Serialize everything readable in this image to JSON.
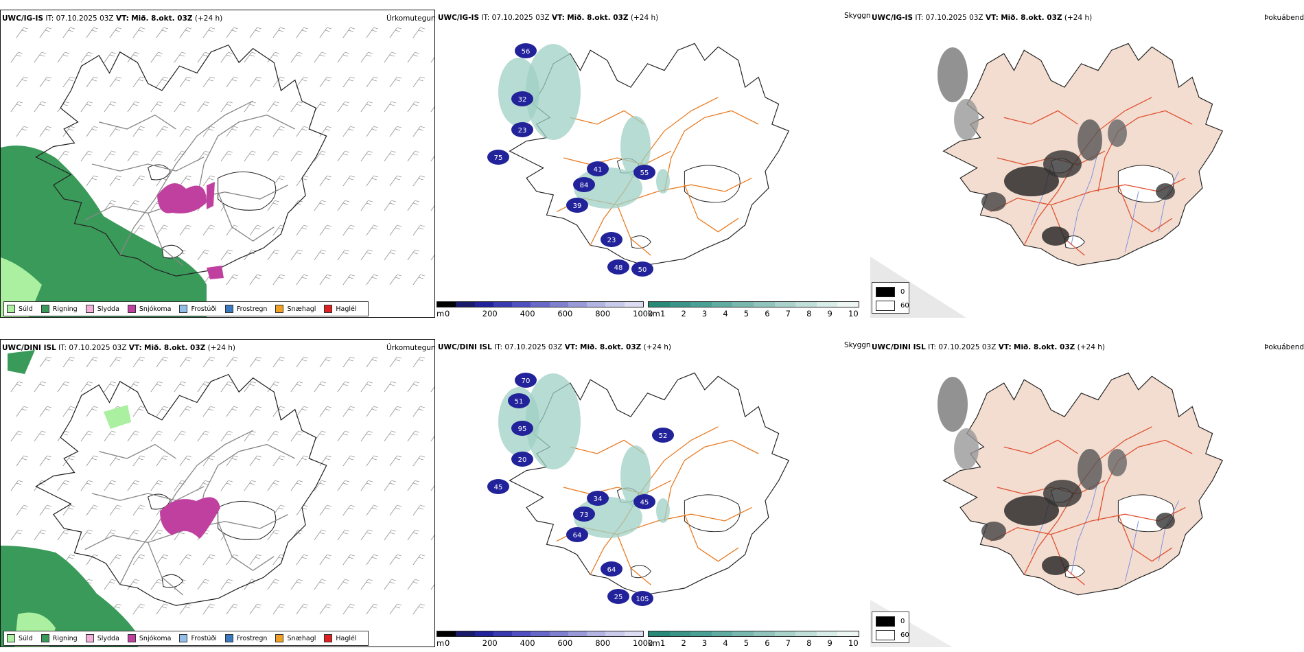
{
  "top": {
    "model_a": "UWC/IG-IS",
    "model_b": "UWC/IG-IS",
    "model_c": "UWC/IG-IS",
    "it_label": "IT:",
    "it_value": "07.10.2025 03Z",
    "vt_label": "VT:",
    "vt_value": "Mið. 8.okt. 03Z",
    "lead": "(+24 h)"
  },
  "bottom": {
    "model_a": "UWC/DINI ISL",
    "model_b": "UWC/DINI ISL",
    "model_c": "UWC/DINI ISL",
    "it_label": "IT:",
    "it_value": "07.10.2025 03Z",
    "vt_label": "VT:",
    "vt_value": "Mið. 8.okt. 03Z",
    "lead": "(+24 h)"
  },
  "panel_names": {
    "precip_type": "Úrkomutegund",
    "visibility": "Skyggni",
    "fog": "Þokuábendi"
  },
  "precip_legend": [
    {
      "label": "Súld",
      "color": "#aaf0a0"
    },
    {
      "label": "Rigning",
      "color": "#3a9a5a"
    },
    {
      "label": "Slydda",
      "color": "#f0b0d8"
    },
    {
      "label": "Snjókoma",
      "color": "#c040a0"
    },
    {
      "label": "Frostúði",
      "color": "#90c0ea"
    },
    {
      "label": "Frostregn",
      "color": "#3a78c0"
    },
    {
      "label": "Snæhagl",
      "color": "#f0a020"
    },
    {
      "label": "Haglél",
      "color": "#e02020"
    }
  ],
  "height_bar": {
    "unit": "m",
    "ticks": [
      "0",
      "200",
      "400",
      "600",
      "800",
      "1000"
    ],
    "colors": [
      "#000000",
      "#1a1a6a",
      "#22229a",
      "#3a3ab0",
      "#5050c0",
      "#6868c8",
      "#8080d0",
      "#9a9ad8",
      "#b4b4e2",
      "#cacaea",
      "#dcdcf2"
    ]
  },
  "visibility_bar": {
    "unit": "km",
    "ticks": [
      "1",
      "2",
      "3",
      "4",
      "5",
      "6",
      "7",
      "8",
      "9",
      "10"
    ],
    "colors": [
      "#2a8a7a",
      "#3a9488",
      "#4aa094",
      "#60aca0",
      "#78b8ae",
      "#90c4bc",
      "#a8d2ca",
      "#c0dfd8",
      "#d8ece8",
      "#eef6f4"
    ]
  },
  "fog_legend": [
    {
      "label": "0",
      "color": "#000000"
    },
    {
      "label": "60",
      "color": "#ffffff"
    }
  ],
  "visibility_labels_top": [
    "56",
    "32",
    "23",
    "75",
    "84",
    "39",
    "41",
    "55",
    "23",
    "48",
    "50"
  ],
  "visibility_labels_bottom": [
    "70",
    "95",
    "20",
    "45",
    "73",
    "64",
    "34",
    "45",
    "64",
    "25",
    "105",
    "51",
    "52"
  ]
}
